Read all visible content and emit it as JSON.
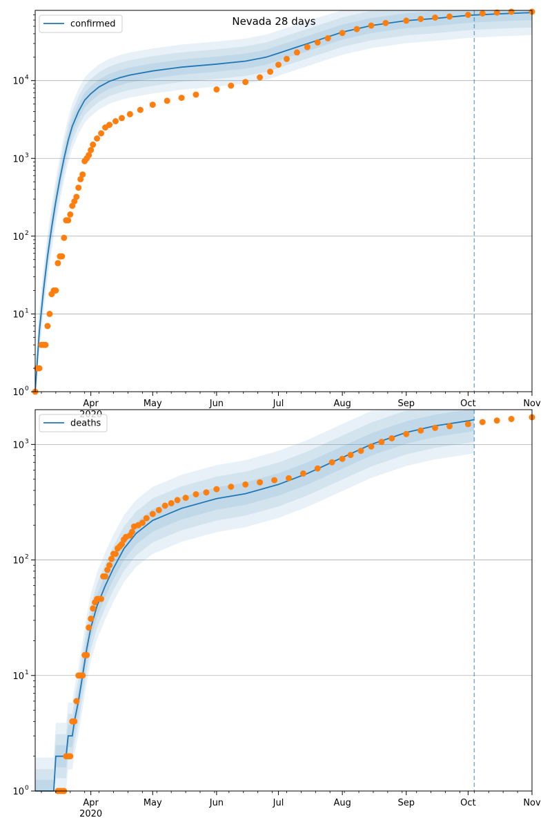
{
  "figure": {
    "title": "Nevada 28 days"
  },
  "colors": {
    "model": "#1f77b4",
    "observed": "#ff7f0e",
    "band": "#1f77b4",
    "grid": "#b0b0b0",
    "axis": "#000000"
  },
  "chart_data": [
    {
      "type": "line",
      "title": "Nevada 28 days",
      "yscale": "log",
      "xlim": [
        "2020-03-05",
        "2020-11-01"
      ],
      "ylim": [
        1,
        80000
      ],
      "grid": "horizontal",
      "legend": {
        "placement": "top-left",
        "entries": [
          "confirmed"
        ]
      },
      "forecast_start": "2020-10-04",
      "x_ticks": [
        {
          "date": "2020-04-01",
          "label": "Apr",
          "sublabel": "2020"
        },
        {
          "date": "2020-05-01",
          "label": "May",
          "sublabel": ""
        },
        {
          "date": "2020-06-01",
          "label": "Jun",
          "sublabel": ""
        },
        {
          "date": "2020-07-01",
          "label": "Jul",
          "sublabel": ""
        },
        {
          "date": "2020-08-01",
          "label": "Aug",
          "sublabel": ""
        },
        {
          "date": "2020-09-01",
          "label": "Sep",
          "sublabel": ""
        },
        {
          "date": "2020-10-01",
          "label": "Oct",
          "sublabel": ""
        },
        {
          "date": "2020-11-01",
          "label": "Nov",
          "sublabel": ""
        }
      ],
      "y_ticks": [
        {
          "value": 1,
          "label": "10",
          "exp": "0"
        },
        {
          "value": 10,
          "label": "10",
          "exp": "1"
        },
        {
          "value": 100,
          "label": "10",
          "exp": "2"
        },
        {
          "value": 1000,
          "label": "10",
          "exp": "3"
        },
        {
          "value": 10000,
          "label": "10",
          "exp": "4"
        }
      ],
      "series": [
        {
          "name": "confirmed",
          "kind": "line",
          "points": [
            [
              "2020-03-05",
              1
            ],
            [
              "2020-03-07",
              6
            ],
            [
              "2020-03-09",
              20
            ],
            [
              "2020-03-11",
              55
            ],
            [
              "2020-03-13",
              130
            ],
            [
              "2020-03-15",
              280
            ],
            [
              "2020-03-17",
              550
            ],
            [
              "2020-03-19",
              1000
            ],
            [
              "2020-03-21",
              1700
            ],
            [
              "2020-03-23",
              2600
            ],
            [
              "2020-03-26",
              4000
            ],
            [
              "2020-03-29",
              5600
            ],
            [
              "2020-04-01",
              6800
            ],
            [
              "2020-04-05",
              8300
            ],
            [
              "2020-04-10",
              9800
            ],
            [
              "2020-04-15",
              10900
            ],
            [
              "2020-04-20",
              11800
            ],
            [
              "2020-05-01",
              13300
            ],
            [
              "2020-05-15",
              14900
            ],
            [
              "2020-06-01",
              16300
            ],
            [
              "2020-06-15",
              17800
            ],
            [
              "2020-06-25",
              20000
            ],
            [
              "2020-07-01",
              22500
            ],
            [
              "2020-07-10",
              27000
            ],
            [
              "2020-07-20",
              33000
            ],
            [
              "2020-08-01",
              42000
            ],
            [
              "2020-08-15",
              51000
            ],
            [
              "2020-09-01",
              59000
            ],
            [
              "2020-09-15",
              63000
            ],
            [
              "2020-10-01",
              69000
            ],
            [
              "2020-10-15",
              72000
            ],
            [
              "2020-11-01",
              75000
            ]
          ]
        },
        {
          "name": "",
          "kind": "scatter",
          "points": [
            [
              "2020-03-05",
              1
            ],
            [
              "2020-03-06",
              2
            ],
            [
              "2020-03-07",
              2
            ],
            [
              "2020-03-08",
              4
            ],
            [
              "2020-03-09",
              4
            ],
            [
              "2020-03-10",
              4
            ],
            [
              "2020-03-11",
              7
            ],
            [
              "2020-03-12",
              10
            ],
            [
              "2020-03-13",
              18
            ],
            [
              "2020-03-14",
              20
            ],
            [
              "2020-03-15",
              20
            ],
            [
              "2020-03-16",
              45
            ],
            [
              "2020-03-17",
              55
            ],
            [
              "2020-03-18",
              55
            ],
            [
              "2020-03-19",
              95
            ],
            [
              "2020-03-20",
              160
            ],
            [
              "2020-03-21",
              160
            ],
            [
              "2020-03-22",
              190
            ],
            [
              "2020-03-23",
              245
            ],
            [
              "2020-03-24",
              280
            ],
            [
              "2020-03-25",
              320
            ],
            [
              "2020-03-26",
              420
            ],
            [
              "2020-03-27",
              540
            ],
            [
              "2020-03-28",
              620
            ],
            [
              "2020-03-29",
              920
            ],
            [
              "2020-03-30",
              1000
            ],
            [
              "2020-03-31",
              1100
            ],
            [
              "2020-04-01",
              1280
            ],
            [
              "2020-04-02",
              1500
            ],
            [
              "2020-04-04",
              1800
            ],
            [
              "2020-04-06",
              2100
            ],
            [
              "2020-04-08",
              2500
            ],
            [
              "2020-04-10",
              2700
            ],
            [
              "2020-04-13",
              3000
            ],
            [
              "2020-04-16",
              3300
            ],
            [
              "2020-04-20",
              3700
            ],
            [
              "2020-04-25",
              4200
            ],
            [
              "2020-05-01",
              4900
            ],
            [
              "2020-05-08",
              5500
            ],
            [
              "2020-05-15",
              6000
            ],
            [
              "2020-05-22",
              6600
            ],
            [
              "2020-06-01",
              7700
            ],
            [
              "2020-06-08",
              8600
            ],
            [
              "2020-06-15",
              9600
            ],
            [
              "2020-06-22",
              11000
            ],
            [
              "2020-06-27",
              13000
            ],
            [
              "2020-07-01",
              16000
            ],
            [
              "2020-07-05",
              19000
            ],
            [
              "2020-07-10",
              23000
            ],
            [
              "2020-07-15",
              27000
            ],
            [
              "2020-07-20",
              31000
            ],
            [
              "2020-07-25",
              35000
            ],
            [
              "2020-08-01",
              41000
            ],
            [
              "2020-08-08",
              46000
            ],
            [
              "2020-08-15",
              51000
            ],
            [
              "2020-08-22",
              55000
            ],
            [
              "2020-09-01",
              59000
            ],
            [
              "2020-09-08",
              62000
            ],
            [
              "2020-09-15",
              64500
            ],
            [
              "2020-09-22",
              66500
            ],
            [
              "2020-10-01",
              70000
            ],
            [
              "2020-10-08",
              73000
            ],
            [
              "2020-10-15",
              75000
            ],
            [
              "2020-10-22",
              78000
            ],
            [
              "2020-11-01",
              81000
            ]
          ]
        }
      ]
    },
    {
      "type": "line",
      "title": "",
      "yscale": "log",
      "xlim": [
        "2020-03-05",
        "2020-11-01"
      ],
      "ylim": [
        1,
        2000
      ],
      "grid": "horizontal",
      "legend": {
        "placement": "top-left",
        "entries": [
          "deaths"
        ]
      },
      "forecast_start": "2020-10-04",
      "x_ticks": [
        {
          "date": "2020-04-01",
          "label": "Apr",
          "sublabel": "2020"
        },
        {
          "date": "2020-05-01",
          "label": "May",
          "sublabel": ""
        },
        {
          "date": "2020-06-01",
          "label": "Jun",
          "sublabel": ""
        },
        {
          "date": "2020-07-01",
          "label": "Jul",
          "sublabel": ""
        },
        {
          "date": "2020-08-01",
          "label": "Aug",
          "sublabel": ""
        },
        {
          "date": "2020-09-01",
          "label": "Sep",
          "sublabel": ""
        },
        {
          "date": "2020-10-01",
          "label": "Oct",
          "sublabel": ""
        },
        {
          "date": "2020-11-01",
          "label": "Nov",
          "sublabel": ""
        }
      ],
      "y_ticks": [
        {
          "value": 1,
          "label": "10",
          "exp": "0"
        },
        {
          "value": 10,
          "label": "10",
          "exp": "1"
        },
        {
          "value": 100,
          "label": "10",
          "exp": "2"
        },
        {
          "value": 1000,
          "label": "10",
          "exp": "3"
        }
      ],
      "series": [
        {
          "name": "deaths",
          "kind": "line",
          "points": [
            [
              "2020-03-05",
              1
            ],
            [
              "2020-03-14",
              1
            ],
            [
              "2020-03-15",
              2
            ],
            [
              "2020-03-20",
              2
            ],
            [
              "2020-03-21",
              3
            ],
            [
              "2020-03-23",
              3
            ],
            [
              "2020-03-24",
              4
            ],
            [
              "2020-03-26",
              6
            ],
            [
              "2020-03-28",
              10
            ],
            [
              "2020-03-30",
              17
            ],
            [
              "2020-04-01",
              26
            ],
            [
              "2020-04-04",
              40
            ],
            [
              "2020-04-08",
              60
            ],
            [
              "2020-04-12",
              85
            ],
            [
              "2020-04-17",
              125
            ],
            [
              "2020-04-23",
              170
            ],
            [
              "2020-05-01",
              220
            ],
            [
              "2020-05-15",
              280
            ],
            [
              "2020-06-01",
              340
            ],
            [
              "2020-06-15",
              375
            ],
            [
              "2020-07-01",
              450
            ],
            [
              "2020-07-15",
              560
            ],
            [
              "2020-08-01",
              770
            ],
            [
              "2020-08-15",
              1000
            ],
            [
              "2020-09-01",
              1270
            ],
            [
              "2020-09-15",
              1450
            ],
            [
              "2020-10-01",
              1600
            ],
            [
              "2020-10-04",
              1640
            ]
          ]
        },
        {
          "name": "",
          "kind": "scatter",
          "points": [
            [
              "2020-03-16",
              1
            ],
            [
              "2020-03-17",
              1
            ],
            [
              "2020-03-18",
              1
            ],
            [
              "2020-03-19",
              1
            ],
            [
              "2020-03-20",
              2
            ],
            [
              "2020-03-21",
              2
            ],
            [
              "2020-03-22",
              2
            ],
            [
              "2020-03-23",
              4
            ],
            [
              "2020-03-24",
              4
            ],
            [
              "2020-03-25",
              6
            ],
            [
              "2020-03-26",
              10
            ],
            [
              "2020-03-27",
              10
            ],
            [
              "2020-03-28",
              10
            ],
            [
              "2020-03-29",
              15
            ],
            [
              "2020-03-30",
              15
            ],
            [
              "2020-03-31",
              26
            ],
            [
              "2020-04-01",
              31
            ],
            [
              "2020-04-02",
              38
            ],
            [
              "2020-04-03",
              43
            ],
            [
              "2020-04-04",
              46
            ],
            [
              "2020-04-05",
              46
            ],
            [
              "2020-04-06",
              46
            ],
            [
              "2020-04-07",
              72
            ],
            [
              "2020-04-08",
              72
            ],
            [
              "2020-04-09",
              82
            ],
            [
              "2020-04-10",
              90
            ],
            [
              "2020-04-11",
              102
            ],
            [
              "2020-04-12",
              113
            ],
            [
              "2020-04-13",
              113
            ],
            [
              "2020-04-14",
              126
            ],
            [
              "2020-04-15",
              131
            ],
            [
              "2020-04-16",
              137
            ],
            [
              "2020-04-17",
              150
            ],
            [
              "2020-04-18",
              158
            ],
            [
              "2020-04-20",
              163
            ],
            [
              "2020-04-21",
              175
            ],
            [
              "2020-04-22",
              195
            ],
            [
              "2020-04-24",
              200
            ],
            [
              "2020-04-26",
              210
            ],
            [
              "2020-04-28",
              230
            ],
            [
              "2020-05-01",
              250
            ],
            [
              "2020-05-04",
              270
            ],
            [
              "2020-05-07",
              295
            ],
            [
              "2020-05-10",
              310
            ],
            [
              "2020-05-13",
              330
            ],
            [
              "2020-05-17",
              345
            ],
            [
              "2020-05-22",
              370
            ],
            [
              "2020-05-27",
              385
            ],
            [
              "2020-06-01",
              410
            ],
            [
              "2020-06-08",
              430
            ],
            [
              "2020-06-15",
              450
            ],
            [
              "2020-06-22",
              470
            ],
            [
              "2020-06-29",
              490
            ],
            [
              "2020-07-06",
              510
            ],
            [
              "2020-07-13",
              560
            ],
            [
              "2020-07-20",
              620
            ],
            [
              "2020-07-27",
              700
            ],
            [
              "2020-08-01",
              750
            ],
            [
              "2020-08-05",
              810
            ],
            [
              "2020-08-10",
              880
            ],
            [
              "2020-08-15",
              960
            ],
            [
              "2020-08-20",
              1050
            ],
            [
              "2020-08-25",
              1130
            ],
            [
              "2020-09-01",
              1230
            ],
            [
              "2020-09-08",
              1320
            ],
            [
              "2020-09-15",
              1390
            ],
            [
              "2020-09-22",
              1440
            ],
            [
              "2020-10-01",
              1500
            ],
            [
              "2020-10-08",
              1560
            ],
            [
              "2020-10-15",
              1610
            ],
            [
              "2020-10-22",
              1660
            ],
            [
              "2020-11-01",
              1720
            ]
          ]
        }
      ]
    }
  ]
}
